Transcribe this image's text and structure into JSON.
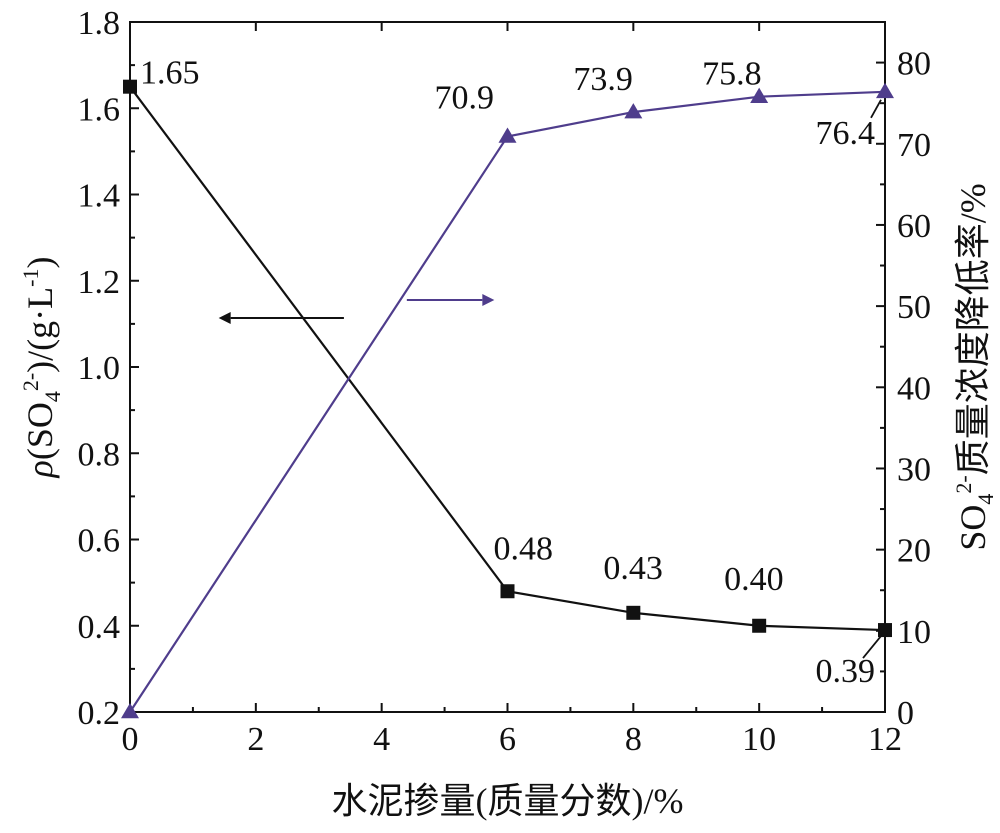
{
  "chart_data": {
    "type": "line",
    "x_axis": {
      "label": "水泥掺量(质量分数)/%",
      "range": [
        0,
        12
      ],
      "ticks": [
        0,
        2,
        4,
        6,
        8,
        10,
        12
      ],
      "tick_labels": [
        "0",
        "2",
        "4",
        "6",
        "8",
        "10",
        "12"
      ]
    },
    "y_left": {
      "label_main": "ρ(SO",
      "label_sub": "4",
      "label_sup": "2-",
      "label_tail": ")/(g·L",
      "label_tail_sup": "-1",
      "label_end": ")",
      "range": [
        0.2,
        1.8
      ],
      "ticks": [
        0.2,
        0.4,
        0.6,
        0.8,
        1.0,
        1.2,
        1.4,
        1.6,
        1.8
      ],
      "tick_labels": [
        "0.2",
        "0.4",
        "0.6",
        "0.8",
        "1.0",
        "1.2",
        "1.4",
        "1.6",
        "1.8"
      ]
    },
    "y_right": {
      "label_main": "SO",
      "label_sub": "4",
      "label_sup": "2-",
      "label_tail": "质量浓度降低率/%",
      "range": [
        0,
        85
      ],
      "ticks": [
        0,
        10,
        20,
        30,
        40,
        50,
        60,
        70,
        80
      ],
      "tick_labels": [
        "0",
        "10",
        "20",
        "30",
        "40",
        "50",
        "60",
        "70",
        "80"
      ]
    },
    "series": [
      {
        "axis": "left",
        "color": "#111111",
        "marker": "square",
        "x": [
          0,
          6,
          8,
          10,
          12
        ],
        "y": [
          1.65,
          0.48,
          0.43,
          0.4,
          0.39
        ],
        "labels": [
          "1.65",
          "0.48",
          "0.43",
          "0.40",
          "0.39"
        ]
      },
      {
        "axis": "right",
        "color": "#4f3d8c",
        "marker": "triangle",
        "x": [
          0,
          6,
          8,
          10,
          12
        ],
        "y": [
          0,
          70.9,
          73.9,
          75.8,
          76.4
        ],
        "labels": [
          "",
          "70.9",
          "73.9",
          "75.8",
          "76.4"
        ]
      }
    ],
    "grid": false,
    "legend": "none",
    "annotations": [
      {
        "type": "arrow",
        "direction": "left",
        "series": "left"
      },
      {
        "type": "arrow",
        "direction": "right",
        "series": "right"
      }
    ]
  }
}
